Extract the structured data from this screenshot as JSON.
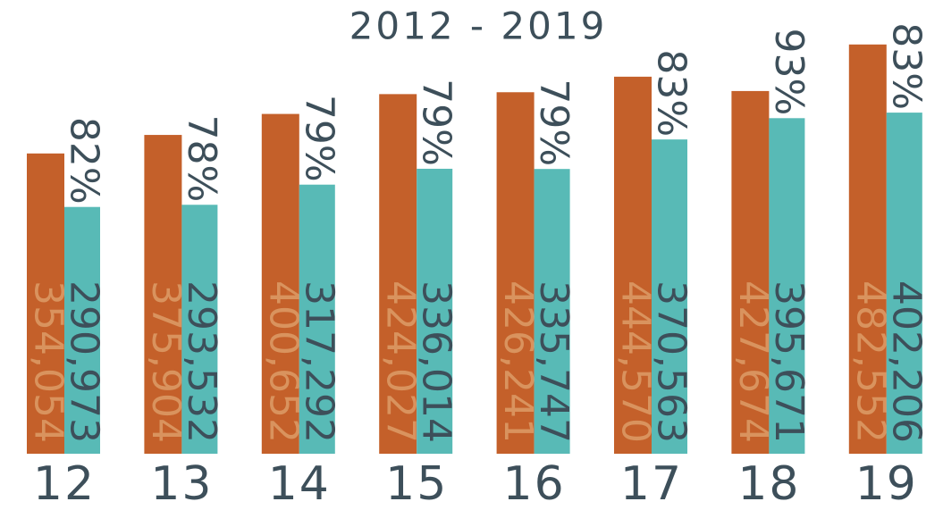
{
  "chart_data": {
    "type": "bar",
    "title": "2012 - 2019",
    "categories": [
      "12",
      "13",
      "14",
      "15",
      "16",
      "17",
      "18",
      "19"
    ],
    "series": [
      {
        "color": "#c4602a",
        "label_color": "#d9935e",
        "values": [
          354054,
          375904,
          400652,
          424027,
          426241,
          444570,
          427674,
          482552
        ],
        "value_labels": [
          "354,054",
          "375,904",
          "400,652",
          "424,027",
          "426,241",
          "444,570",
          "427,674",
          "482,552"
        ]
      },
      {
        "color": "#58bab6",
        "label_color": "#3d4f5a",
        "values": [
          290973,
          293532,
          317292,
          336014,
          335747,
          370563,
          395671,
          402206
        ],
        "value_labels": [
          "290,973",
          "293,532",
          "317,292",
          "336,014",
          "335,747",
          "370,563",
          "395,671",
          "402,206"
        ]
      }
    ],
    "annotations": [
      "82%",
      "78%",
      "79%",
      "79%",
      "79%",
      "83%",
      "93%",
      "83%"
    ],
    "ylim": [
      0,
      535000
    ]
  }
}
